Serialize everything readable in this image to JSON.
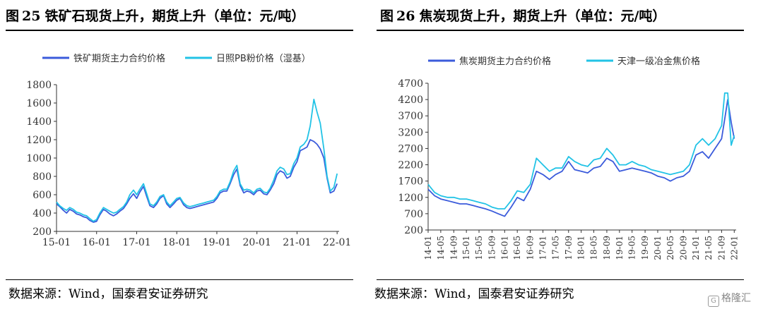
{
  "figure_left": {
    "title_prefix": "图",
    "number": "25",
    "title": "铁矿石现货上升，期货上升（单位：元/吨）",
    "source": "数据来源：Wind，国泰君安证券研究"
  },
  "figure_right": {
    "title_prefix": "图",
    "number": "26",
    "title": "焦炭现货上升，期货上升（单位：元/吨）",
    "source": "数据来源：Wind，国泰君安证券研究"
  },
  "watermark": "格隆汇",
  "colors": {
    "series_futures": "#3b5bdb",
    "series_spot": "#22c3e6",
    "axis": "#333333"
  },
  "chart_data": [
    {
      "type": "line",
      "legend_position": "top",
      "grid": false,
      "ylim": [
        200,
        1800
      ],
      "yticks": [
        200,
        400,
        600,
        800,
        1000,
        1200,
        1400,
        1600,
        1800
      ],
      "x_tick_labels": [
        "15-01",
        "16-01",
        "17-01",
        "18-01",
        "19-01",
        "20-01",
        "21-01",
        "22-01"
      ],
      "x_tick_positions": [
        2015.0,
        2016.0,
        2017.0,
        2018.0,
        2019.0,
        2020.0,
        2021.0,
        2022.0
      ],
      "xlim": [
        2015.0,
        2022.05
      ],
      "series": [
        {
          "name": "铁矿期货主力合约价格",
          "x": [
            2015.0,
            2015.08,
            2015.17,
            2015.25,
            2015.33,
            2015.42,
            2015.5,
            2015.58,
            2015.67,
            2015.75,
            2015.83,
            2015.92,
            2016.0,
            2016.08,
            2016.17,
            2016.25,
            2016.33,
            2016.42,
            2016.5,
            2016.58,
            2016.67,
            2016.75,
            2016.83,
            2016.92,
            2017.0,
            2017.08,
            2017.17,
            2017.25,
            2017.33,
            2017.42,
            2017.5,
            2017.58,
            2017.67,
            2017.75,
            2017.83,
            2017.92,
            2018.0,
            2018.08,
            2018.17,
            2018.25,
            2018.33,
            2018.42,
            2018.5,
            2018.58,
            2018.67,
            2018.75,
            2018.83,
            2018.92,
            2019.0,
            2019.08,
            2019.17,
            2019.25,
            2019.33,
            2019.42,
            2019.5,
            2019.58,
            2019.67,
            2019.75,
            2019.83,
            2019.92,
            2020.0,
            2020.08,
            2020.17,
            2020.25,
            2020.33,
            2020.42,
            2020.5,
            2020.58,
            2020.67,
            2020.75,
            2020.83,
            2020.92,
            2021.0,
            2021.08,
            2021.17,
            2021.25,
            2021.33,
            2021.42,
            2021.5,
            2021.58,
            2021.67,
            2021.75,
            2021.83,
            2021.92,
            2022.0
          ],
          "values": [
            500,
            470,
            430,
            400,
            440,
            420,
            390,
            380,
            360,
            350,
            320,
            300,
            310,
            380,
            440,
            420,
            390,
            370,
            390,
            420,
            450,
            500,
            560,
            610,
            560,
            630,
            690,
            580,
            480,
            460,
            500,
            560,
            590,
            500,
            460,
            500,
            540,
            560,
            490,
            460,
            450,
            460,
            470,
            480,
            490,
            500,
            510,
            520,
            560,
            620,
            640,
            640,
            720,
            820,
            880,
            700,
            620,
            640,
            630,
            600,
            640,
            650,
            610,
            600,
            650,
            720,
            820,
            860,
            840,
            780,
            800,
            900,
            960,
            1080,
            1100,
            1120,
            1200,
            1180,
            1150,
            1100,
            1000,
            780,
            620,
            640,
            720
          ],
          "color": "#3b5bdb"
        },
        {
          "name": "日照PB粉价格（湿基）",
          "x": [
            2015.0,
            2015.08,
            2015.17,
            2015.25,
            2015.33,
            2015.42,
            2015.5,
            2015.58,
            2015.67,
            2015.75,
            2015.83,
            2015.92,
            2016.0,
            2016.08,
            2016.17,
            2016.25,
            2016.33,
            2016.42,
            2016.5,
            2016.58,
            2016.67,
            2016.75,
            2016.83,
            2016.92,
            2017.0,
            2017.08,
            2017.17,
            2017.25,
            2017.33,
            2017.42,
            2017.5,
            2017.58,
            2017.67,
            2017.75,
            2017.83,
            2017.92,
            2018.0,
            2018.08,
            2018.17,
            2018.25,
            2018.33,
            2018.42,
            2018.5,
            2018.58,
            2018.67,
            2018.75,
            2018.83,
            2018.92,
            2019.0,
            2019.08,
            2019.17,
            2019.25,
            2019.33,
            2019.42,
            2019.5,
            2019.58,
            2019.67,
            2019.75,
            2019.83,
            2019.92,
            2020.0,
            2020.08,
            2020.17,
            2020.25,
            2020.33,
            2020.42,
            2020.5,
            2020.58,
            2020.67,
            2020.75,
            2020.83,
            2020.92,
            2021.0,
            2021.08,
            2021.17,
            2021.25,
            2021.33,
            2021.42,
            2021.5,
            2021.58,
            2021.67,
            2021.75,
            2021.83,
            2021.92,
            2022.0
          ],
          "values": [
            520,
            480,
            450,
            430,
            460,
            440,
            410,
            400,
            380,
            370,
            340,
            310,
            330,
            400,
            460,
            440,
            420,
            400,
            410,
            440,
            470,
            520,
            600,
            650,
            600,
            660,
            720,
            610,
            500,
            480,
            520,
            580,
            600,
            520,
            480,
            520,
            560,
            570,
            510,
            480,
            470,
            480,
            490,
            500,
            510,
            520,
            530,
            540,
            580,
            640,
            660,
            660,
            740,
            860,
            920,
            720,
            650,
            660,
            650,
            620,
            660,
            670,
            630,
            620,
            670,
            760,
            860,
            900,
            880,
            820,
            830,
            940,
            1000,
            1120,
            1150,
            1200,
            1350,
            1640,
            1500,
            1380,
            1100,
            800,
            640,
            680,
            830
          ],
          "color": "#22c3e6"
        }
      ]
    },
    {
      "type": "line",
      "legend_position": "top",
      "grid": false,
      "ylim": [
        200,
        4700
      ],
      "yticks": [
        200,
        700,
        1200,
        1700,
        2200,
        2700,
        3200,
        3700,
        4200,
        4700
      ],
      "x_tick_labels": [
        "14-01",
        "14-05",
        "14-09",
        "15-01",
        "15-05",
        "15-09",
        "16-01",
        "16-05",
        "16-09",
        "17-01",
        "17-05",
        "17-09",
        "18-01",
        "18-05",
        "18-09",
        "19-01",
        "19-05",
        "19-09",
        "20-01",
        "20-05",
        "20-09",
        "21-01",
        "21-05",
        "21-09",
        "22-01"
      ],
      "x_tick_positions": [
        2014.0,
        2014.33,
        2014.67,
        2015.0,
        2015.33,
        2015.67,
        2016.0,
        2016.33,
        2016.67,
        2017.0,
        2017.33,
        2017.67,
        2018.0,
        2018.33,
        2018.67,
        2019.0,
        2019.33,
        2019.67,
        2020.0,
        2020.33,
        2020.67,
        2021.0,
        2021.33,
        2021.67,
        2022.0
      ],
      "xlim": [
        2014.0,
        2022.05
      ],
      "series": [
        {
          "name": "焦炭期货主力合约价格",
          "x": [
            2014.0,
            2014.17,
            2014.33,
            2014.5,
            2014.67,
            2014.83,
            2015.0,
            2015.17,
            2015.33,
            2015.5,
            2015.67,
            2015.83,
            2016.0,
            2016.17,
            2016.33,
            2016.5,
            2016.67,
            2016.83,
            2017.0,
            2017.17,
            2017.33,
            2017.5,
            2017.67,
            2017.83,
            2018.0,
            2018.17,
            2018.33,
            2018.5,
            2018.67,
            2018.83,
            2019.0,
            2019.17,
            2019.33,
            2019.5,
            2019.67,
            2019.83,
            2020.0,
            2020.17,
            2020.33,
            2020.5,
            2020.67,
            2020.83,
            2021.0,
            2021.17,
            2021.33,
            2021.5,
            2021.67,
            2021.75,
            2021.83,
            2021.92,
            2022.0
          ],
          "values": [
            1450,
            1250,
            1150,
            1100,
            1050,
            1000,
            1000,
            950,
            900,
            850,
            780,
            700,
            620,
            900,
            1200,
            1100,
            1450,
            2000,
            1900,
            1750,
            1900,
            2000,
            2300,
            2050,
            2000,
            1950,
            2100,
            2150,
            2400,
            2300,
            2000,
            2050,
            2100,
            2050,
            2000,
            1950,
            1850,
            1800,
            1700,
            1800,
            1850,
            2000,
            2500,
            2600,
            2400,
            2700,
            3000,
            3600,
            4200,
            3500,
            3000
          ],
          "color": "#3b5bdb"
        },
        {
          "name": "天津一级冶金焦价格",
          "x": [
            2014.0,
            2014.17,
            2014.33,
            2014.5,
            2014.67,
            2014.83,
            2015.0,
            2015.17,
            2015.33,
            2015.5,
            2015.67,
            2015.83,
            2016.0,
            2016.17,
            2016.33,
            2016.5,
            2016.67,
            2016.83,
            2017.0,
            2017.17,
            2017.33,
            2017.5,
            2017.67,
            2017.83,
            2018.0,
            2018.17,
            2018.33,
            2018.5,
            2018.67,
            2018.83,
            2019.0,
            2019.17,
            2019.33,
            2019.5,
            2019.67,
            2019.83,
            2020.0,
            2020.17,
            2020.33,
            2020.5,
            2020.67,
            2020.83,
            2021.0,
            2021.17,
            2021.33,
            2021.5,
            2021.67,
            2021.75,
            2021.83,
            2021.92,
            2022.0
          ],
          "values": [
            1600,
            1350,
            1250,
            1200,
            1200,
            1150,
            1150,
            1100,
            1050,
            1000,
            900,
            850,
            850,
            1100,
            1400,
            1350,
            1600,
            2400,
            2200,
            2000,
            2100,
            2100,
            2450,
            2300,
            2200,
            2150,
            2350,
            2400,
            2700,
            2500,
            2200,
            2200,
            2300,
            2200,
            2150,
            2050,
            2000,
            1950,
            1900,
            1950,
            2000,
            2200,
            2800,
            3000,
            2800,
            3000,
            3400,
            4400,
            4400,
            2800,
            3100
          ],
          "color": "#22c3e6"
        }
      ]
    }
  ]
}
